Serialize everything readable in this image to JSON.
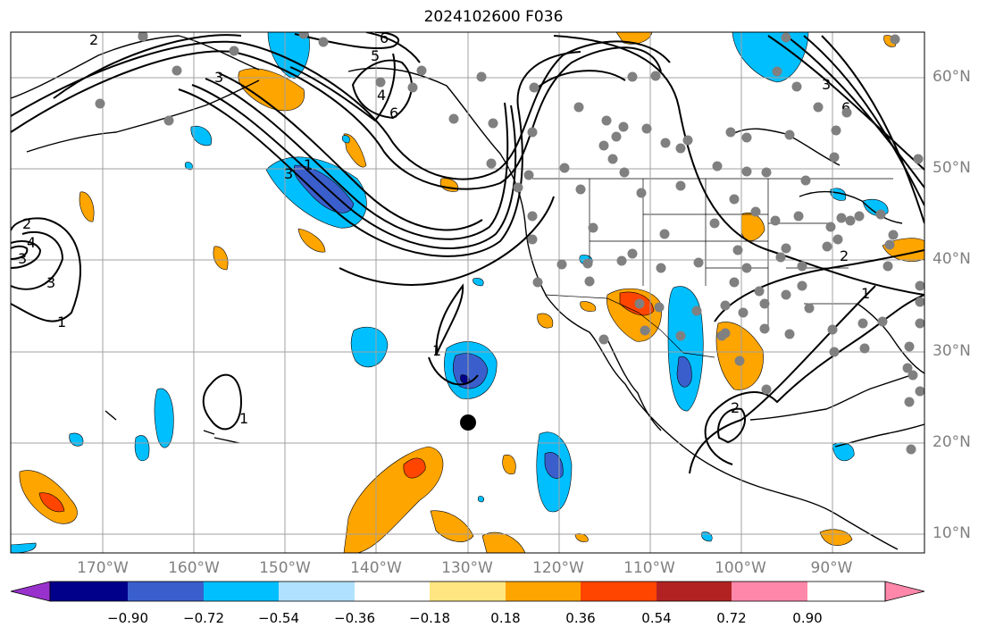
{
  "title": "2024102600 F036",
  "lat_labels": [
    "60°N",
    "50°N",
    "40°N",
    "30°N",
    "20°N",
    "10°N"
  ],
  "lon_labels": [
    "170°W",
    "160°W",
    "150°W",
    "140°W",
    "130°W",
    "120°W",
    "110°W",
    "100°W",
    "90°W"
  ],
  "contour_labels": [
    "2",
    "3",
    "4",
    "5",
    "6",
    "1"
  ],
  "colorbar": {
    "ticks": [
      "−0.90",
      "−0.72",
      "−0.54",
      "−0.36",
      "−0.18",
      "0.18",
      "0.36",
      "0.54",
      "0.72",
      "0.90"
    ],
    "colors": [
      "#9932cc",
      "#00008b",
      "#3a5fcd",
      "#00bfff",
      "#b0e2ff",
      "#ffffff",
      "#ffe680",
      "#ffa500",
      "#ff4500",
      "#b22222",
      "#ff88aa"
    ]
  },
  "colors": {
    "land_line": "#000000",
    "grid": "#a0a0a0",
    "station_dot": "#808080"
  }
}
